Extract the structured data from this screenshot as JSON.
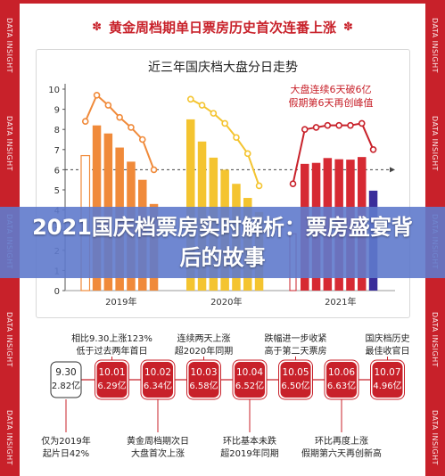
{
  "side_watermark": "DATA INSIGHT",
  "header": {
    "title": "黄金周档期单日票房历史首次连番上涨",
    "ornament": "✽"
  },
  "banner": {
    "title": "2021国庆档票房实时解析：票房盛宴背后的故事"
  },
  "colors": {
    "red": "#c8212a",
    "orange": "#f08a3a",
    "yellow": "#f4c430",
    "dark_red": "#d62a33",
    "purple": "#3a2d9a"
  },
  "chart_data": {
    "type": "bar",
    "title": "近三年国庆档大盘分日走势",
    "annotation": [
      "大盘连续6天破6亿",
      "假期第6天再创峰值"
    ],
    "ylim": [
      0,
      10
    ],
    "yticks": [
      "0",
      "1",
      "2",
      "3",
      "4",
      "5",
      "6",
      "7",
      "8",
      "9",
      "10"
    ],
    "reference_line": 6,
    "groups": [
      {
        "label": "2019年",
        "bar_color": "#f08a3a",
        "line_color": "#f08a3a",
        "values": [
          6.7,
          8.2,
          7.8,
          7.1,
          6.4,
          5.5,
          4.3
        ],
        "line": [
          8.4,
          9.7,
          9.2,
          8.6,
          8.1,
          7.5,
          6.0
        ]
      },
      {
        "label": "2020年",
        "bar_color": "#f4c430",
        "line_color": "#f4c430",
        "values": [
          8.5,
          7.4,
          6.6,
          6.0,
          5.3,
          4.6,
          3.9
        ],
        "line": [
          9.5,
          9.2,
          8.8,
          8.3,
          7.6,
          6.8,
          5.2
        ]
      },
      {
        "label": "2021年",
        "bar_color": "#d62a33",
        "line_color": "#c8212a",
        "values": [
          6.29,
          6.34,
          6.58,
          6.52,
          6.5,
          6.63,
          4.96
        ],
        "line": [
          8.0,
          8.1,
          8.2,
          8.2,
          8.2,
          8.3,
          7.0
        ],
        "leading": {
          "x": 5.3,
          "bar": 2.82
        }
      }
    ],
    "timeline": [
      {
        "date": "9.30",
        "value": "2.82亿",
        "top": "",
        "bottom": "仅为2019年\n起片日42%",
        "style": "outline"
      },
      {
        "date": "10.01",
        "value": "6.29亿",
        "top": "相比9.30上涨123%\n低于过去两年首日",
        "bottom": "",
        "style": "fill"
      },
      {
        "date": "10.02",
        "value": "6.34亿",
        "top": "",
        "bottom": "黄金周档期次日\n大盘首次上涨",
        "style": "fill"
      },
      {
        "date": "10.03",
        "value": "6.58亿",
        "top": "连续两天上涨\n超2020年同期",
        "bottom": "",
        "style": "fill"
      },
      {
        "date": "10.04",
        "value": "6.52亿",
        "top": "",
        "bottom": "环比基本未跌\n超2019年同期",
        "style": "fill"
      },
      {
        "date": "10.05",
        "value": "6.50亿",
        "top": "跌幅进一步收紧\n高于第二天票房",
        "bottom": "",
        "style": "fill"
      },
      {
        "date": "10.06",
        "value": "6.63亿",
        "top": "",
        "bottom": "环比再度上涨\n假期第六天再创新高",
        "style": "fill"
      },
      {
        "date": "10.07",
        "value": "4.96亿",
        "top": "国庆档历史\n最佳收官日",
        "bottom": "",
        "style": "fill"
      }
    ]
  }
}
